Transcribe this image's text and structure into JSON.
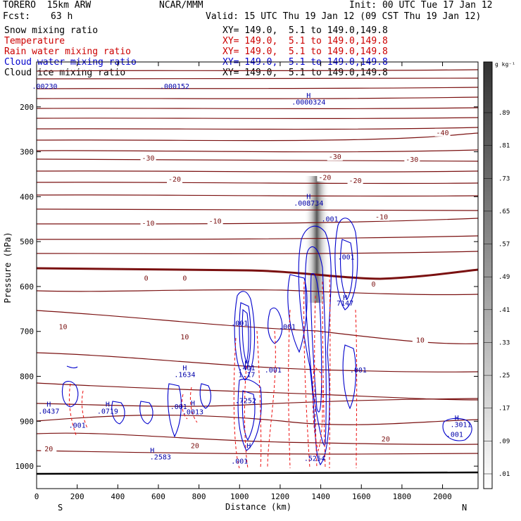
{
  "header": {
    "model": "TORERO  15km ARW",
    "center": "NCAR/MMM",
    "init": "Init: 00 UTC Tue 17 Jan 12",
    "fcst_label": "Fcst:",
    "fcst_hours": "63 h",
    "valid": "Valid: 15 UTC Thu 19 Jan 12 (09 CST Thu 19 Jan 12)"
  },
  "fields": [
    {
      "name": "Snow mixing ratio",
      "xy": "XY= 149.0,  5.1 to 149.0,149.8",
      "color": "#000000"
    },
    {
      "name": "Temperature",
      "xy": "XY= 149.0,  5.1 to 149.0,149.8",
      "color": "#cc0000"
    },
    {
      "name": "Rain water mixing ratio",
      "xy": "XY= 149.0,  5.1 to 149.0,149.8",
      "color": "#cc0000"
    },
    {
      "name": "Cloud water mixing ratio",
      "xy": "XY= 149.0,  5.1 to 149.0,149.8",
      "color": "#0000cc"
    },
    {
      "name": "Cloud ice mixing ratio",
      "xy": "XY= 149.0,  5.1 to 149.0,149.8",
      "color": "#000000"
    }
  ],
  "chart_data": {
    "type": "cross-section contour",
    "xlabel": "Distance (km)",
    "ylabel": "Pressure (hPa)",
    "xlim": [
      0,
      2175
    ],
    "ylim": [
      1050,
      100
    ],
    "x_ticks": [
      "0",
      "200",
      "400",
      "600",
      "800",
      "1000",
      "1200",
      "1400",
      "1600",
      "1800",
      "2000"
    ],
    "x_tick_values": [
      0,
      200,
      400,
      600,
      800,
      1000,
      1200,
      1400,
      1600,
      1800,
      2000
    ],
    "y_ticks": [
      "200",
      "300",
      "400",
      "500",
      "600",
      "700",
      "800",
      "900",
      "1000"
    ],
    "y_tick_values": [
      200,
      300,
      400,
      500,
      600,
      700,
      800,
      900,
      1000
    ],
    "direction_left": "S",
    "direction_right": "N",
    "colorbar": {
      "unit": "g kg⁻¹",
      "labels": [
        ".01",
        ".09",
        ".17",
        ".25",
        ".33",
        ".41",
        ".49",
        ".57",
        ".65",
        ".73",
        ".81",
        ".89"
      ]
    },
    "temperature_contours": [
      {
        "label": "-40",
        "x": 2000,
        "p": 258
      },
      {
        "label": "-30",
        "x": 550,
        "p": 315
      },
      {
        "label": "-30",
        "x": 1470,
        "p": 312
      },
      {
        "label": "-30",
        "x": 1850,
        "p": 318
      },
      {
        "label": "-20",
        "x": 680,
        "p": 362
      },
      {
        "label": "-20",
        "x": 1420,
        "p": 358
      },
      {
        "label": "-20",
        "x": 1570,
        "p": 365
      },
      {
        "label": "-10",
        "x": 550,
        "p": 460
      },
      {
        "label": "-10",
        "x": 880,
        "p": 455
      },
      {
        "label": "-10",
        "x": 1700,
        "p": 446
      },
      {
        "label": "0",
        "x": 540,
        "p": 582
      },
      {
        "label": "0",
        "x": 730,
        "p": 582
      },
      {
        "label": "0",
        "x": 1660,
        "p": 595
      },
      {
        "label": "10",
        "x": 130,
        "p": 690
      },
      {
        "label": "10",
        "x": 730,
        "p": 713
      },
      {
        "label": "10",
        "x": 1890,
        "p": 720
      },
      {
        "label": "20",
        "x": 60,
        "p": 962
      },
      {
        "label": "20",
        "x": 780,
        "p": 955
      },
      {
        "label": "20",
        "x": 1720,
        "p": 940
      }
    ],
    "annotations": [
      {
        "text": "H",
        "x": 1340,
        "p": 175
      },
      {
        "text": ".0000324",
        "x": 1340,
        "p": 190
      },
      {
        "text": "H",
        "x": 1340,
        "p": 400
      },
      {
        "text": ".008734",
        "x": 1340,
        "p": 415
      },
      {
        "text": "H",
        "x": 1520,
        "p": 625
      },
      {
        "text": "7147",
        "x": 1520,
        "p": 638
      },
      {
        "text": ".001",
        "x": 1445,
        "p": 450
      },
      {
        "text": ".001",
        "x": 1525,
        "p": 535
      },
      {
        "text": ".001",
        "x": 1000,
        "p": 682
      },
      {
        "text": ".001",
        "x": 1235,
        "p": 690
      },
      {
        "text": "H",
        "x": 1035,
        "p": 772
      },
      {
        "text": ".401",
        "x": 1035,
        "p": 782
      },
      {
        "text": "1.17",
        "x": 1035,
        "p": 797
      },
      {
        "text": "H",
        "x": 730,
        "p": 782
      },
      {
        "text": ".1634",
        "x": 730,
        "p": 797
      },
      {
        "text": ".7252",
        "x": 1030,
        "p": 855
      },
      {
        "text": "H",
        "x": 350,
        "p": 863
      },
      {
        "text": ".0719",
        "x": 350,
        "p": 878
      },
      {
        "text": "H",
        "x": 60,
        "p": 863
      },
      {
        "text": ".0437",
        "x": 60,
        "p": 878
      },
      {
        "text": ".001",
        "x": 700,
        "p": 868
      },
      {
        "text": "H",
        "x": 770,
        "p": 860
      },
      {
        "text": ".0013",
        "x": 770,
        "p": 880
      },
      {
        "text": ".001",
        "x": 200,
        "p": 910
      },
      {
        "text": ".001",
        "x": 1165,
        "p": 787
      },
      {
        "text": ".001",
        "x": 1585,
        "p": 787
      },
      {
        "text": "H",
        "x": 1045,
        "p": 955
      },
      {
        "text": "H",
        "x": 570,
        "p": 965
      },
      {
        "text": ".2583",
        "x": 610,
        "p": 980
      },
      {
        "text": ".001",
        "x": 1000,
        "p": 990
      },
      {
        "text": ".5254",
        "x": 1370,
        "p": 983
      },
      {
        "text": "H",
        "x": 2070,
        "p": 893
      },
      {
        "text": ".3011",
        "x": 2090,
        "p": 908
      },
      {
        "text": ".001",
        "x": 2060,
        "p": 930
      },
      {
        "text": ".00230",
        "x": 40,
        "p": 155
      },
      {
        "text": ".000152",
        "x": 680,
        "p": 155
      }
    ]
  }
}
